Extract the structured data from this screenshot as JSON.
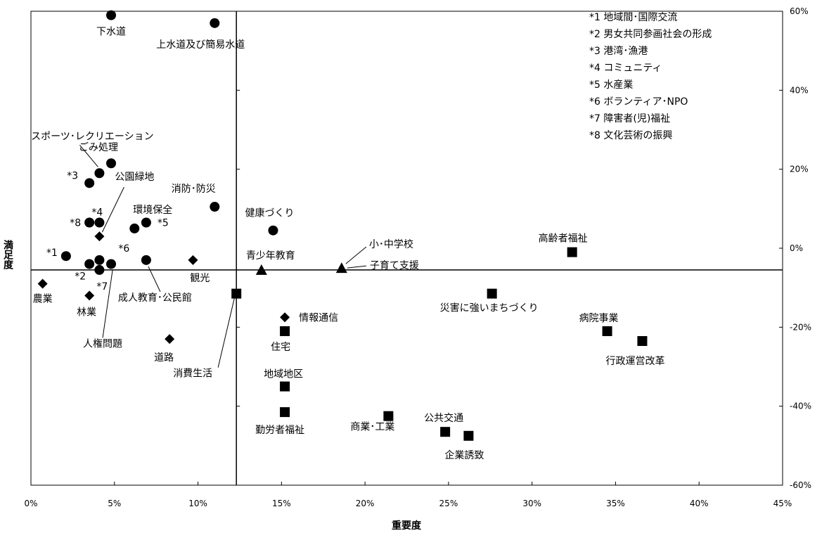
{
  "chart_data": {
    "type": "scatter",
    "xlabel": "重要度",
    "ylabel": "満足度",
    "xlim": [
      0,
      45
    ],
    "ylim": [
      -60,
      60
    ],
    "x_ticks": [
      "0%",
      "5%",
      "10%",
      "15%",
      "20%",
      "25%",
      "30%",
      "35%",
      "40%",
      "45%"
    ],
    "y_ticks": [
      "60%",
      "40%",
      "20%",
      "0%",
      "-20%",
      "-40%",
      "-60%"
    ],
    "cross_x": 12.3,
    "cross_y": -5.5,
    "grid": false,
    "legend": {
      "placement": "top-right",
      "items": [
        "*1  地域間･国際交流",
        "*2  男女共同参画社会の形成",
        "*3  港湾･漁港",
        "*4  コミュニティ",
        "*5  水産業",
        "*6  ボランティア･NPO",
        "*7  障害者(児)福祉",
        "*8  文化芸術の振興"
      ]
    },
    "points": [
      {
        "label": "下水道",
        "x": 4.8,
        "y": 59,
        "marker": "circle"
      },
      {
        "label": "上水道及び簡易水道",
        "x": 11.0,
        "y": 57,
        "marker": "circle"
      },
      {
        "label": "スポーツ･レクリエーション",
        "x": 4.1,
        "y": 19,
        "marker": "circle"
      },
      {
        "label": "ごみ処理",
        "x": 4.8,
        "y": 21.5,
        "marker": "circle"
      },
      {
        "label": "*3",
        "x": 3.5,
        "y": 16.5,
        "marker": "circle"
      },
      {
        "label": "消防･防災",
        "x": 11.0,
        "y": 10.5,
        "marker": "circle"
      },
      {
        "label": "*8",
        "x": 3.5,
        "y": 6.5,
        "marker": "circle"
      },
      {
        "label": "*4",
        "x": 4.1,
        "y": 6.5,
        "marker": "circle"
      },
      {
        "label": "公園緑地",
        "x": 4.1,
        "y": 3,
        "marker": "diamond"
      },
      {
        "label": "環境保全",
        "x": 6.2,
        "y": 5,
        "marker": "circle"
      },
      {
        "label": "*5",
        "x": 6.9,
        "y": 6.5,
        "marker": "circle"
      },
      {
        "label": "健康づくり",
        "x": 14.5,
        "y": 4.5,
        "marker": "circle"
      },
      {
        "label": "*1",
        "x": 2.1,
        "y": -2,
        "marker": "circle"
      },
      {
        "label": "*6",
        "x": 4.1,
        "y": -3,
        "marker": "circle"
      },
      {
        "label": "*2",
        "x": 3.5,
        "y": -4,
        "marker": "circle"
      },
      {
        "label": "*7",
        "x": 4.1,
        "y": -5.5,
        "marker": "circle"
      },
      {
        "label": "成人教育･公民館",
        "x": 6.9,
        "y": -3,
        "marker": "circle"
      },
      {
        "label": "人権問題",
        "x": 4.8,
        "y": -4,
        "marker": "circle"
      },
      {
        "label": "観光",
        "x": 9.7,
        "y": -3,
        "marker": "diamond"
      },
      {
        "label": "農業",
        "x": 0.7,
        "y": -9,
        "marker": "diamond"
      },
      {
        "label": "林業",
        "x": 3.5,
        "y": -12,
        "marker": "diamond"
      },
      {
        "label": "情報通信",
        "x": 15.2,
        "y": -17.5,
        "marker": "diamond"
      },
      {
        "label": "道路",
        "x": 8.3,
        "y": -23,
        "marker": "diamond"
      },
      {
        "label": "青少年教育",
        "x": 13.8,
        "y": -5.5,
        "marker": "triangle"
      },
      {
        "label": "小･中学校",
        "x": 18.6,
        "y": -5,
        "marker": "triangle"
      },
      {
        "label": "子育て支援",
        "x": 18.6,
        "y": -5,
        "marker": "triangle"
      },
      {
        "label": "高齢者福祉",
        "x": 32.4,
        "y": -1,
        "marker": "square"
      },
      {
        "label": "災害に強いまちづくり",
        "x": 27.6,
        "y": -11.5,
        "marker": "square"
      },
      {
        "label": "消費生活",
        "x": 12.3,
        "y": -11.5,
        "marker": "square"
      },
      {
        "label": "住宅",
        "x": 15.2,
        "y": -21,
        "marker": "square"
      },
      {
        "label": "病院事業",
        "x": 34.5,
        "y": -21,
        "marker": "square"
      },
      {
        "label": "行政運営改革",
        "x": 36.6,
        "y": -23.5,
        "marker": "square"
      },
      {
        "label": "地域地区",
        "x": 15.2,
        "y": -35,
        "marker": "square"
      },
      {
        "label": "勤労者福祉",
        "x": 15.2,
        "y": -41.5,
        "marker": "square"
      },
      {
        "label": "商業･工業",
        "x": 21.4,
        "y": -42.5,
        "marker": "square"
      },
      {
        "label": "公共交通",
        "x": 24.8,
        "y": -46.5,
        "marker": "square"
      },
      {
        "label": "企業誘致",
        "x": 26.2,
        "y": -47.5,
        "marker": "square"
      }
    ]
  }
}
